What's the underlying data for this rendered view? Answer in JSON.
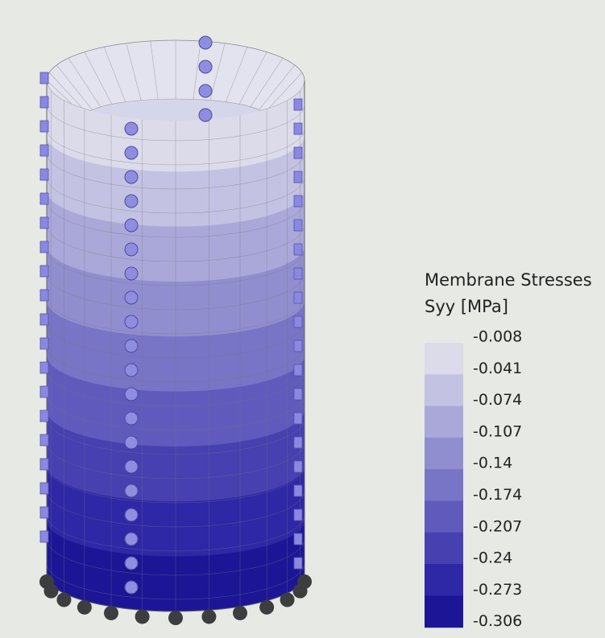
{
  "legend": {
    "title": "Membrane Stresses",
    "subtitle": "Syy [MPa]",
    "levels": [
      "-0.008",
      "-0.041",
      "-0.074",
      "-0.107",
      "-0.14",
      "-0.174",
      "-0.207",
      "-0.24",
      "-0.273",
      "-0.306"
    ],
    "colors": [
      "#dcdbea",
      "#c3c2e2",
      "#aaa8d9",
      "#918ecf",
      "#7874c6",
      "#5f5abc",
      "#4640b1",
      "#2e27a6",
      "#1c1696"
    ]
  }
}
